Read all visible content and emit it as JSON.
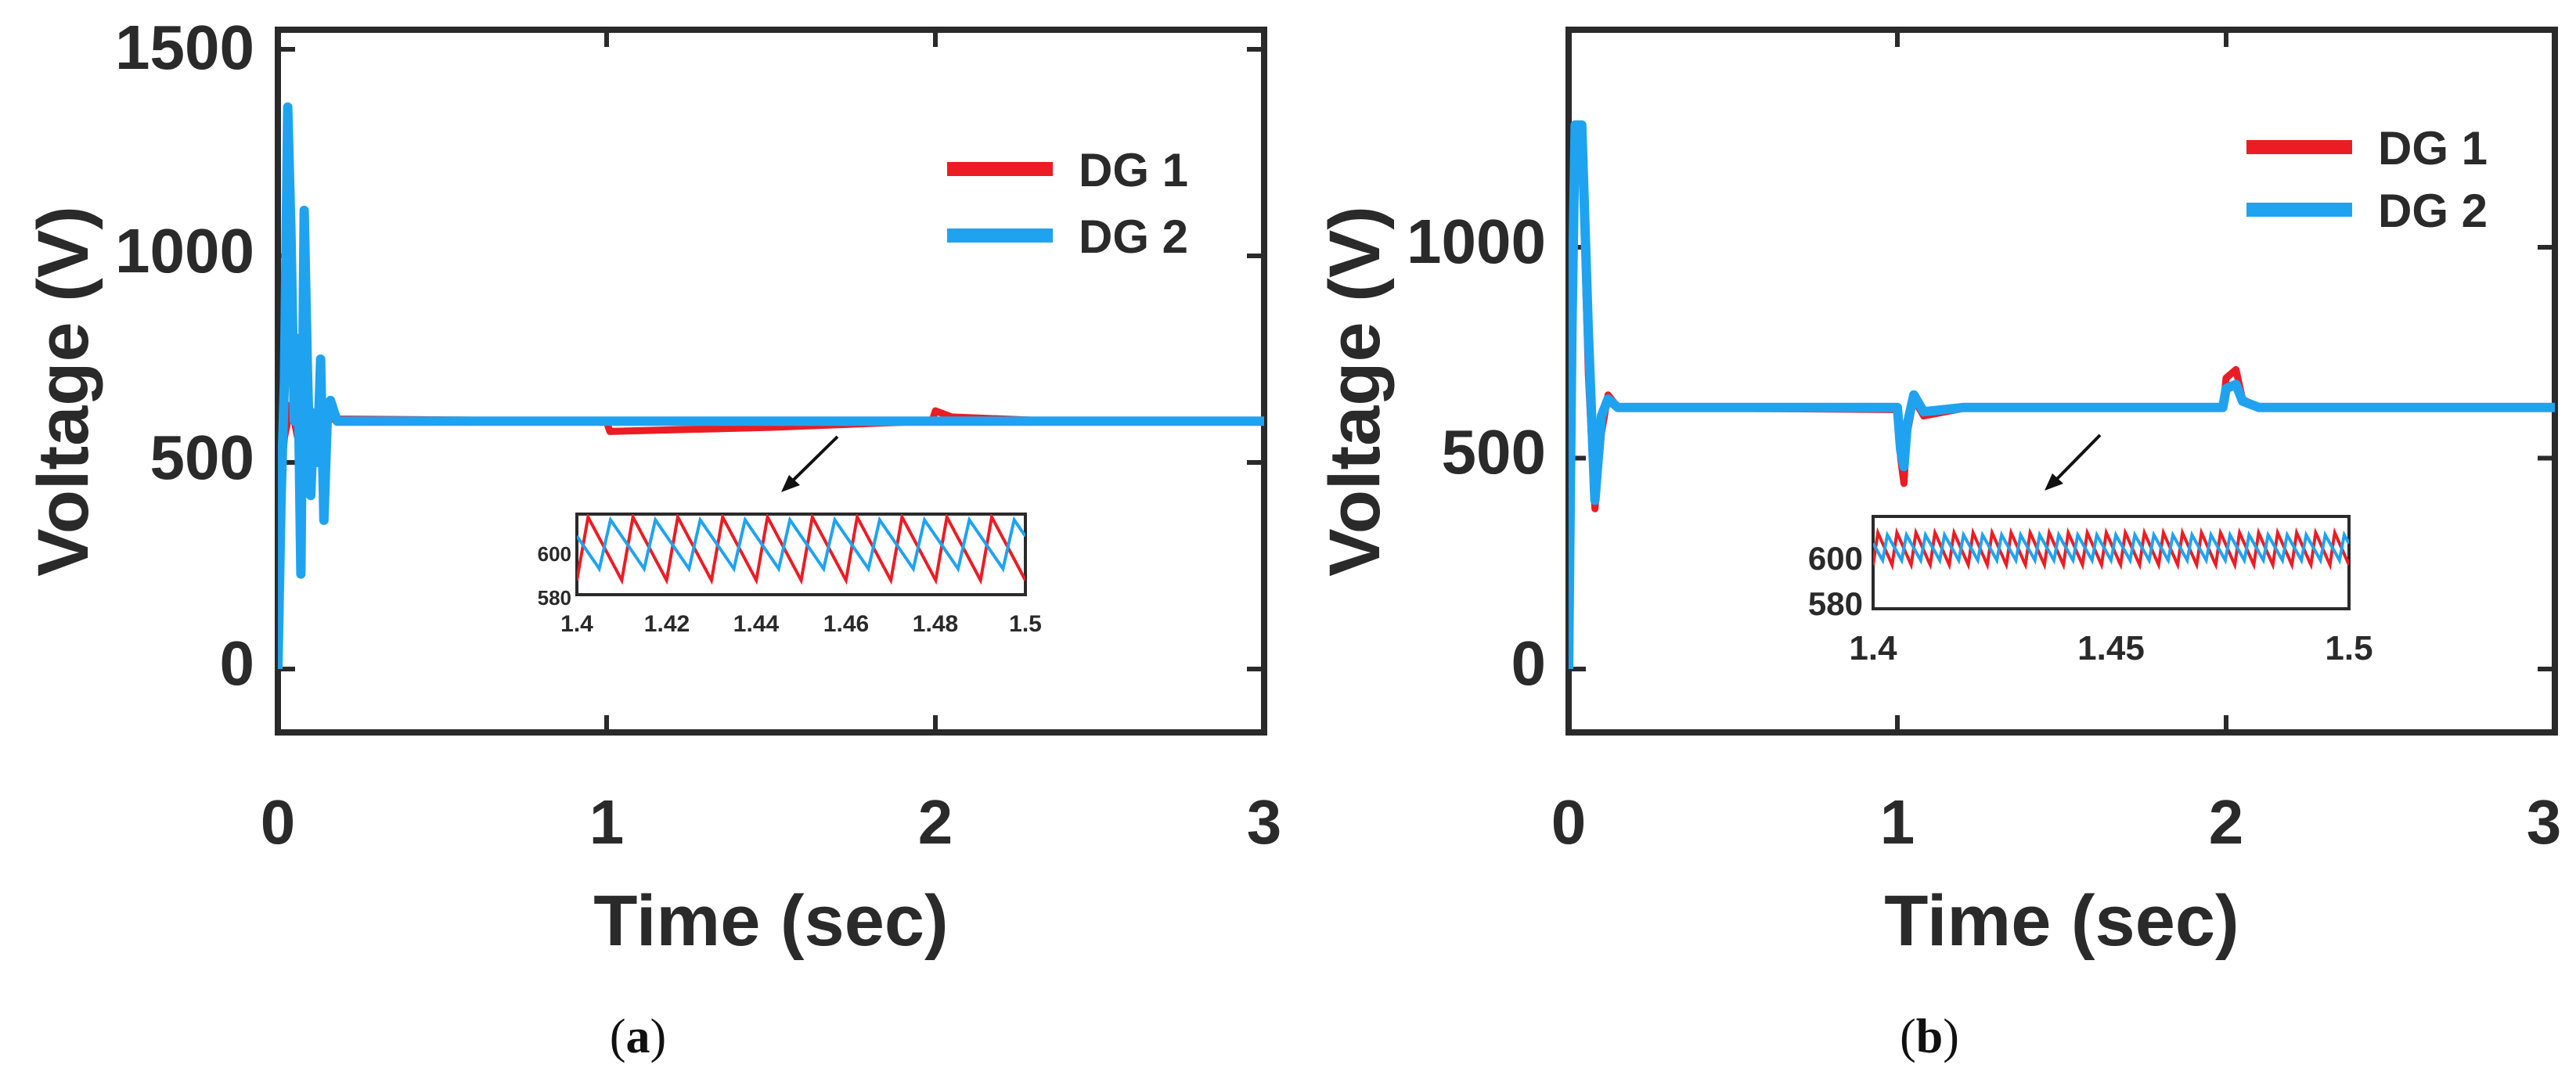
{
  "colors": {
    "dg1": "#ec1c24",
    "dg2": "#1fa3f0",
    "axis": "#2a2a2a"
  },
  "panels": [
    {
      "caption": "(a)",
      "caption_label": "a",
      "xlabel": "Time (sec)",
      "ylabel": "Voltage (V)",
      "xticks": [
        "0",
        "1",
        "2",
        "3"
      ],
      "yticks": [
        "0",
        "500",
        "1000",
        "1500"
      ],
      "legend": [
        "DG 1",
        "DG 2"
      ],
      "inset": {
        "xticks": [
          "1.4",
          "1.42",
          "1.44",
          "1.46",
          "1.48",
          "1.5"
        ],
        "yticks": [
          "580",
          "600"
        ]
      }
    },
    {
      "caption": "(b)",
      "caption_label": "b",
      "xlabel": "Time (sec)",
      "ylabel": "Voltage (V)",
      "xticks": [
        "0",
        "1",
        "2",
        "3"
      ],
      "yticks": [
        "0",
        "500",
        "1000"
      ],
      "legend": [
        "DG 1",
        "DG 2"
      ],
      "inset": {
        "xticks": [
          "1.4",
          "1.45",
          "1.5"
        ],
        "yticks": [
          "580",
          "600"
        ]
      }
    }
  ],
  "chart_data": [
    {
      "type": "line",
      "xlim": [
        0,
        3
      ],
      "ylim": [
        -170,
        1540
      ],
      "legend_position": "top-right",
      "series": [
        {
          "name": "DG 1",
          "color": "#ec1c24",
          "points": [
            [
              0,
              380
            ],
            [
              0.02,
              560
            ],
            [
              0.04,
              640
            ],
            [
              0.06,
              560
            ],
            [
              0.08,
              620
            ],
            [
              0.1,
              575
            ],
            [
              0.12,
              610
            ],
            [
              0.14,
              585
            ],
            [
              0.16,
              605
            ],
            [
              0.2,
              605
            ],
            [
              0.5,
              603
            ],
            [
              0.9,
              600
            ],
            [
              1.0,
              598
            ],
            [
              1.01,
              575
            ],
            [
              1.5,
              585
            ],
            [
              1.99,
              600
            ],
            [
              2.0,
              625
            ],
            [
              2.05,
              610
            ],
            [
              2.3,
              602
            ],
            [
              3.0,
              600
            ]
          ]
        },
        {
          "name": "DG 2",
          "color": "#1fa3f0",
          "points": [
            [
              0,
              0
            ],
            [
              0.01,
              420
            ],
            [
              0.02,
              700
            ],
            [
              0.03,
              1360
            ],
            [
              0.04,
              1050
            ],
            [
              0.05,
              600
            ],
            [
              0.06,
              800
            ],
            [
              0.07,
              230
            ],
            [
              0.08,
              1110
            ],
            [
              0.09,
              720
            ],
            [
              0.1,
              420
            ],
            [
              0.11,
              620
            ],
            [
              0.12,
              500
            ],
            [
              0.13,
              750
            ],
            [
              0.14,
              360
            ],
            [
              0.15,
              600
            ],
            [
              0.16,
              650
            ],
            [
              0.18,
              600
            ],
            [
              0.3,
              600
            ],
            [
              1.0,
              600
            ],
            [
              2.0,
              600
            ],
            [
              3.0,
              600
            ]
          ]
        }
      ],
      "inset": {
        "xlim": [
          1.4,
          1.5
        ],
        "ylim": [
          578,
          606
        ],
        "period": 0.01,
        "series": [
          {
            "name": "DG 1",
            "min": 583,
            "max": 605,
            "phase": 0.0
          },
          {
            "name": "DG 2",
            "min": 587,
            "max": 604,
            "phase": 0.005
          }
        ]
      }
    },
    {
      "type": "line",
      "xlim": [
        0,
        3
      ],
      "ylim": [
        -170,
        1500
      ],
      "legend_position": "top-right",
      "series": [
        {
          "name": "DG 1",
          "color": "#ec1c24",
          "points": [
            [
              0,
              0
            ],
            [
              0.01,
              700
            ],
            [
              0.02,
              1250
            ],
            [
              0.04,
              1250
            ],
            [
              0.06,
              700
            ],
            [
              0.08,
              380
            ],
            [
              0.1,
              560
            ],
            [
              0.12,
              650
            ],
            [
              0.15,
              620
            ],
            [
              0.2,
              620
            ],
            [
              1.0,
              615
            ],
            [
              1.01,
              500
            ],
            [
              1.02,
              440
            ],
            [
              1.03,
              560
            ],
            [
              1.05,
              640
            ],
            [
              1.08,
              600
            ],
            [
              1.2,
              618
            ],
            [
              1.99,
              618
            ],
            [
              2.0,
              690
            ],
            [
              2.03,
              710
            ],
            [
              2.05,
              640
            ],
            [
              2.1,
              618
            ],
            [
              3.0,
              618
            ]
          ]
        },
        {
          "name": "DG 2",
          "color": "#1fa3f0",
          "points": [
            [
              0,
              0
            ],
            [
              0.01,
              800
            ],
            [
              0.02,
              1290
            ],
            [
              0.04,
              1290
            ],
            [
              0.06,
              800
            ],
            [
              0.08,
              400
            ],
            [
              0.1,
              600
            ],
            [
              0.12,
              640
            ],
            [
              0.15,
              620
            ],
            [
              0.2,
              620
            ],
            [
              1.0,
              620
            ],
            [
              1.01,
              520
            ],
            [
              1.02,
              480
            ],
            [
              1.03,
              580
            ],
            [
              1.05,
              650
            ],
            [
              1.08,
              610
            ],
            [
              1.2,
              620
            ],
            [
              1.99,
              620
            ],
            [
              2.0,
              665
            ],
            [
              2.03,
              675
            ],
            [
              2.05,
              635
            ],
            [
              2.1,
              620
            ],
            [
              3.0,
              620
            ]
          ]
        }
      ],
      "inset": {
        "xlim": [
          1.4,
          1.5
        ],
        "ylim": [
          575,
          615
        ],
        "period": 0.004,
        "series": [
          {
            "name": "DG 1",
            "min": 594,
            "max": 608,
            "phase": 0.0
          },
          {
            "name": "DG 2",
            "min": 596,
            "max": 607,
            "phase": 0.002
          }
        ]
      }
    }
  ]
}
